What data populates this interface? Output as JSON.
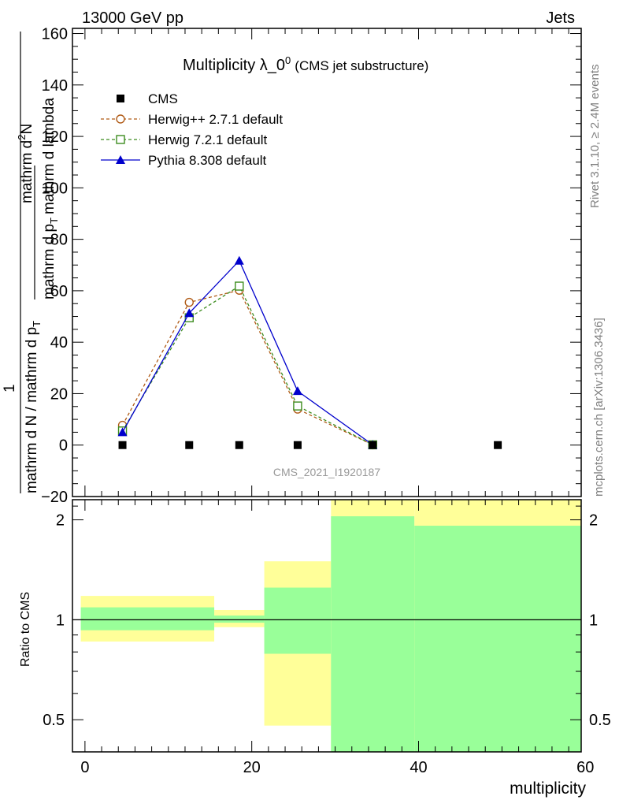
{
  "header": {
    "left": "13000 GeV pp",
    "right": "Jets"
  },
  "side_labels": {
    "top": "Rivet 3.1.10, ≥ 2.4M events",
    "bottom": "mcplots.cern.ch [arXiv:1306.3436]"
  },
  "watermark": "CMS_2021_I1920187",
  "chart_data": [
    {
      "type": "line",
      "title": "Multiplicity λ_0",
      "title_sup": "0",
      "subtitle": "(CMS jet substructure)",
      "ylabel": "1 / (mathrm d N / mathrm d p_T) · mathrm d²N / (mathrm d p_T mathrm d lambda)",
      "ylabel_numerator": "1",
      "ylabel_denominator": "mathrm d N / mathrm d p",
      "ylabel_sub": "T",
      "ylabel_numerator_right": "mathrm d",
      "ylabel_numerator_sup": "2",
      "ylabel_numerator_tail": "N",
      "ylabel_denominator_right1": "mathrm d p",
      "ylabel_denominator_right2": "mathrm d lambda",
      "xlim": [
        -1.5,
        59.5
      ],
      "ylim": [
        -20,
        162
      ],
      "yticks": [
        "−20",
        "0",
        "20",
        "40",
        "60",
        "80",
        "100",
        "120",
        "140",
        "160"
      ],
      "ytick_values": [
        -20,
        0,
        20,
        40,
        60,
        80,
        100,
        120,
        140,
        160
      ],
      "legend_position": "top-left",
      "series": [
        {
          "name": "CMS",
          "color": "#000000",
          "marker": "square-filled",
          "line": "none",
          "x": [
            4.5,
            12.5,
            18.5,
            25.5,
            34.5,
            49.5
          ],
          "y": [
            0,
            0,
            0,
            0,
            0,
            0
          ]
        },
        {
          "name": "Herwig++ 2.7.1 default",
          "color": "#b05a15",
          "marker": "circle-open",
          "line": "dashed",
          "x": [
            4.5,
            12.5,
            18.5,
            25.5,
            34.5
          ],
          "y": [
            7.7,
            55.5,
            60.2,
            14.0,
            0.1
          ]
        },
        {
          "name": "Herwig 7.2.1 default",
          "color": "#3c8c1e",
          "marker": "square-open",
          "line": "dashed",
          "x": [
            4.5,
            12.5,
            18.5,
            25.5,
            34.5
          ],
          "y": [
            5.5,
            49.5,
            61.8,
            15.2,
            0.1
          ]
        },
        {
          "name": "Pythia 8.308 default",
          "color": "#0000cc",
          "marker": "triangle-filled",
          "line": "solid",
          "x": [
            4.5,
            12.5,
            18.5,
            25.5,
            34.5
          ],
          "y": [
            5.0,
            51.3,
            71.7,
            21.0,
            0.1
          ]
        }
      ]
    },
    {
      "type": "area",
      "ylabel": "Ratio to CMS",
      "xlabel": "multiplicity",
      "xlim": [
        -1.5,
        59.5
      ],
      "ylim": [
        0.4,
        2.3
      ],
      "yscale": "log",
      "yticks": [
        "0.5",
        "1",
        "2"
      ],
      "ytick_values": [
        0.5,
        1,
        2
      ],
      "xticks": [
        "0",
        "20",
        "40",
        "60"
      ],
      "xtick_values": [
        0,
        20,
        40,
        60
      ],
      "bins": [
        {
          "x_low": -0.5,
          "x_high": 15.5,
          "inner": [
            0.93,
            1.09
          ],
          "outer": [
            0.86,
            1.18
          ]
        },
        {
          "x_low": 15.5,
          "x_high": 21.5,
          "inner": [
            0.98,
            1.03
          ],
          "outer": [
            0.95,
            1.07
          ]
        },
        {
          "x_low": 21.5,
          "x_high": 29.5,
          "inner": [
            0.79,
            1.25
          ],
          "outer": [
            0.48,
            1.5
          ]
        },
        {
          "x_low": 29.5,
          "x_high": 39.5,
          "inner": [
            0.4,
            2.05
          ],
          "outer": [
            0.4,
            2.3
          ]
        },
        {
          "x_low": 39.5,
          "x_high": 59.5,
          "inner": [
            0.4,
            1.92
          ],
          "outer": [
            0.4,
            2.3
          ]
        }
      ],
      "colors": {
        "inner": "#99ff99",
        "outer": "#ffff99",
        "reference": "#000000"
      }
    }
  ]
}
